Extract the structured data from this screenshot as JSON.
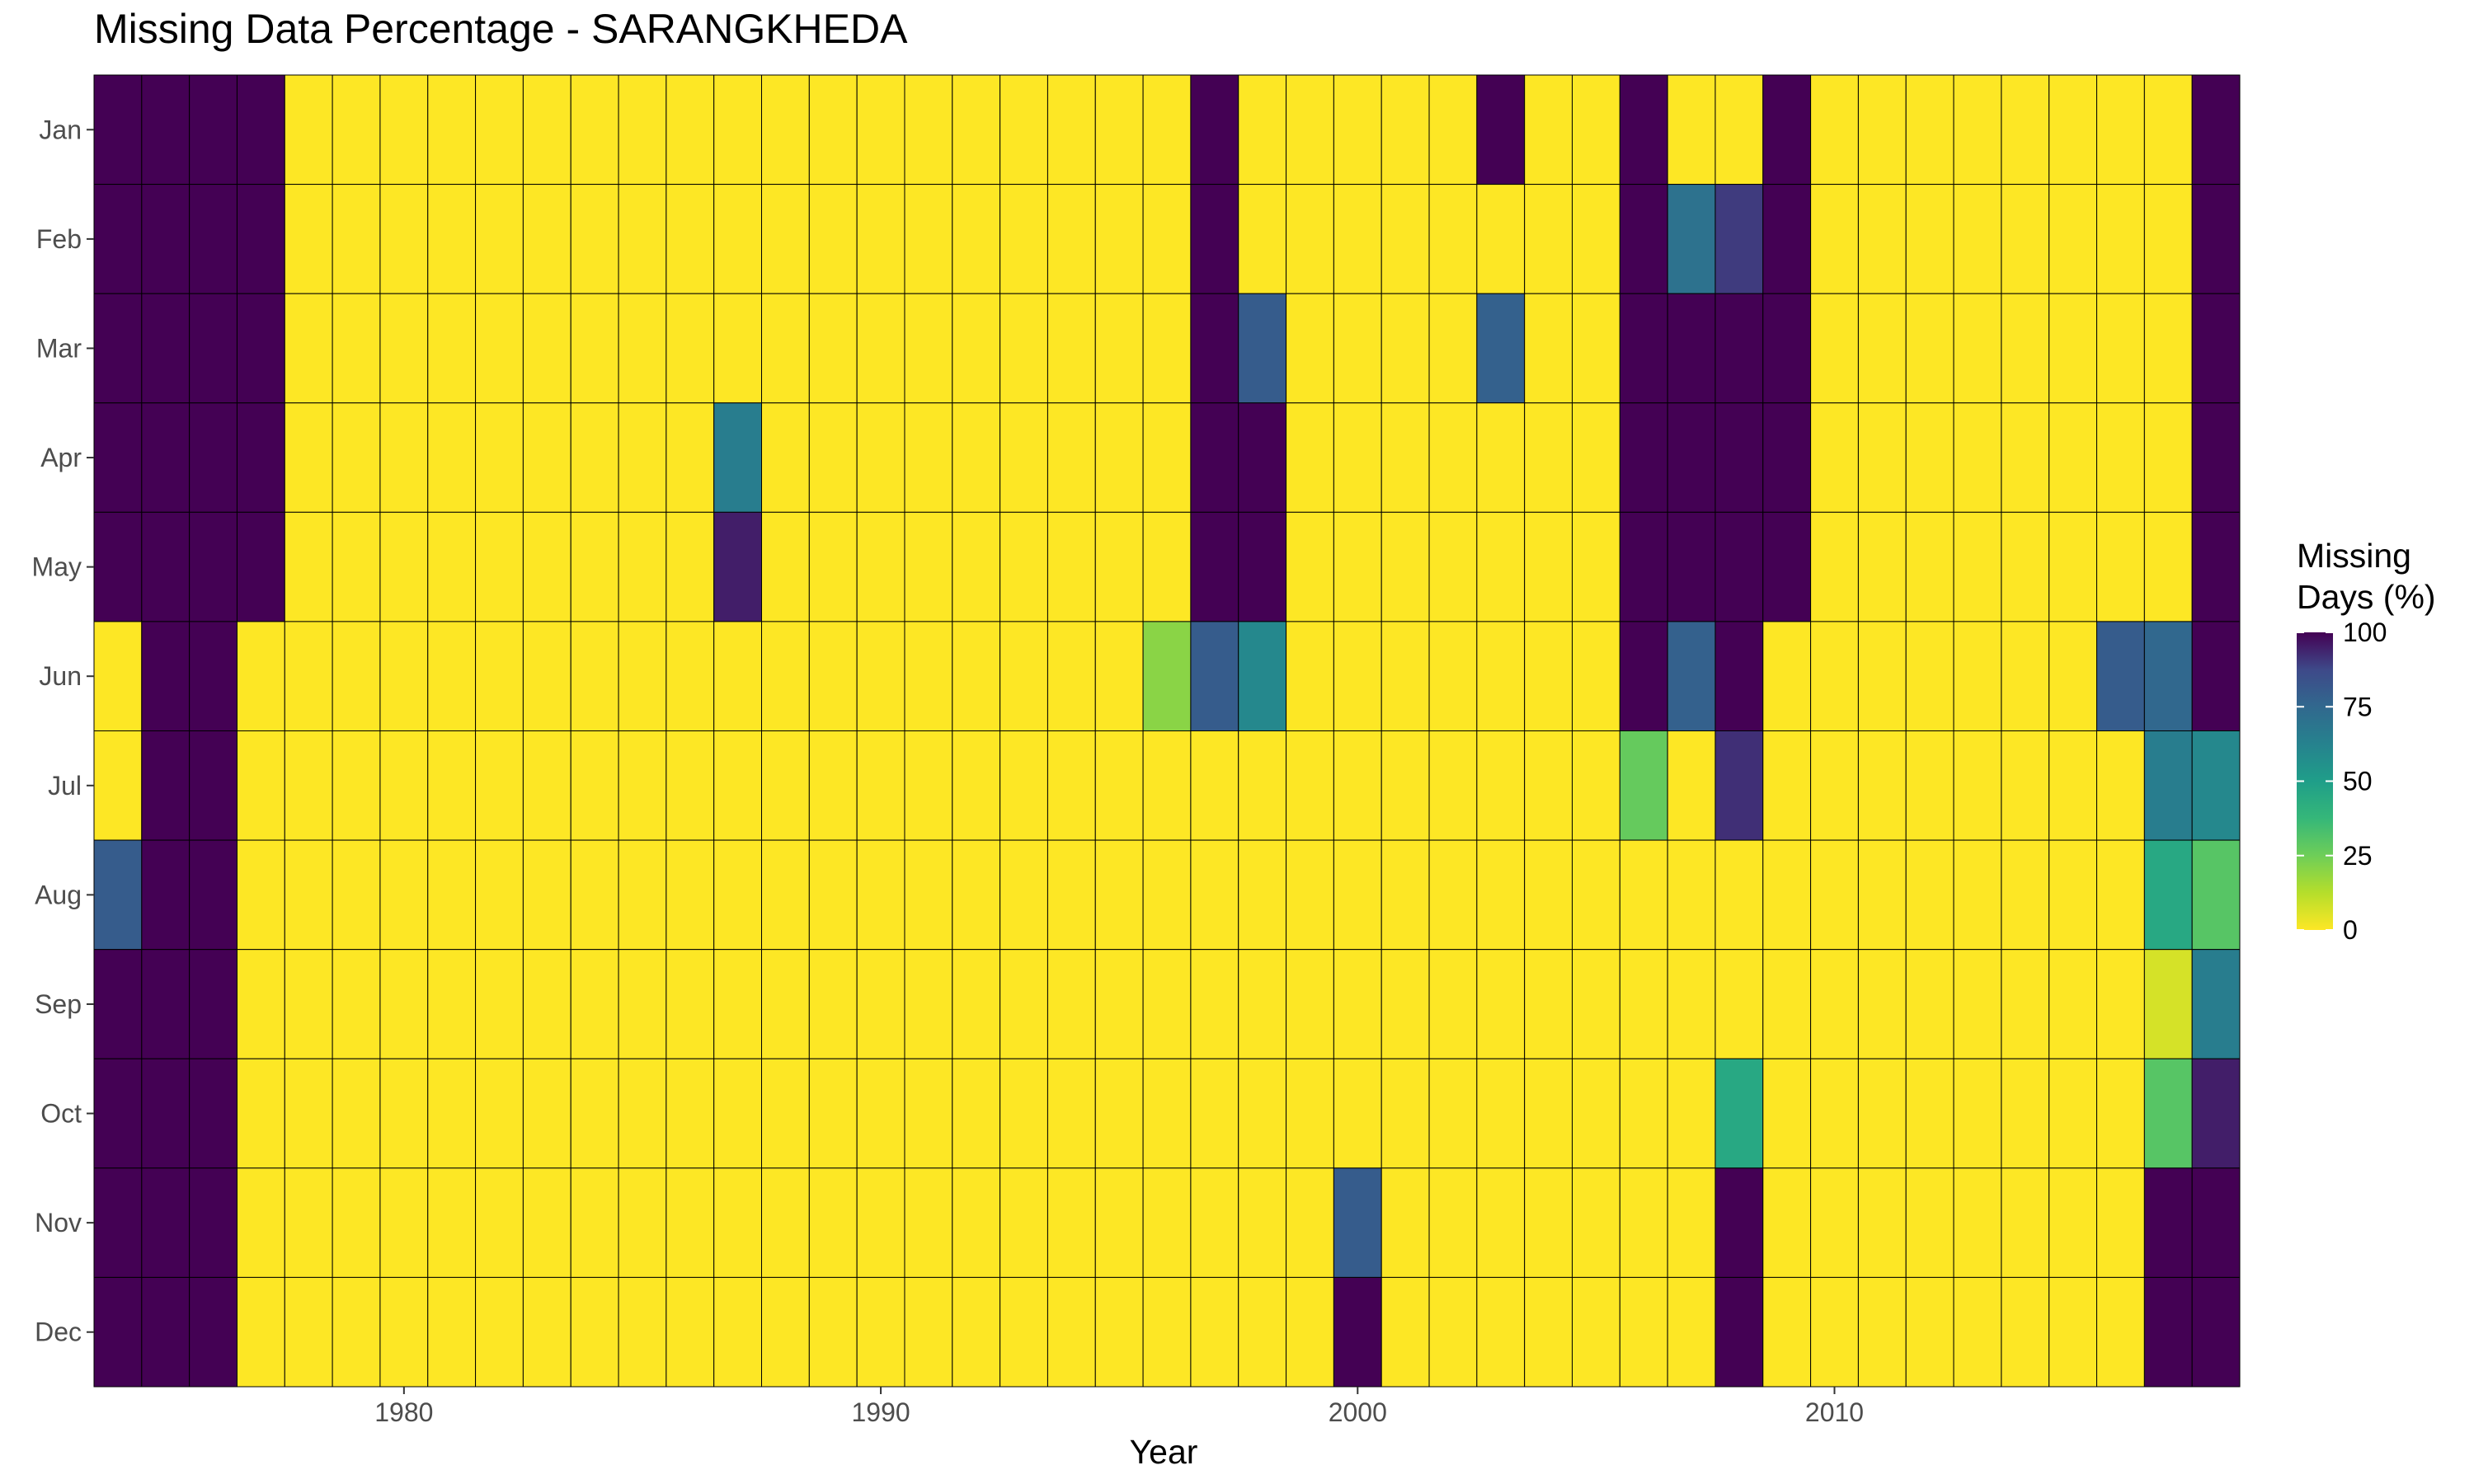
{
  "chart_data": {
    "type": "heatmap",
    "title": "Missing Data Percentage - SARANGKHEDA",
    "xlabel": "Year",
    "ylabel": "",
    "x_ticks": [
      1980,
      1990,
      2000,
      2010
    ],
    "years": [
      1974,
      1975,
      1976,
      1977,
      1978,
      1979,
      1980,
      1981,
      1982,
      1983,
      1984,
      1985,
      1986,
      1987,
      1988,
      1989,
      1990,
      1991,
      1992,
      1993,
      1994,
      1995,
      1996,
      1997,
      1998,
      1999,
      2000,
      2001,
      2002,
      2003,
      2004,
      2005,
      2006,
      2007,
      2008,
      2009,
      2010,
      2011,
      2012,
      2013,
      2014,
      2015,
      2016,
      2017,
      2018
    ],
    "months": [
      "Jan",
      "Feb",
      "Mar",
      "Apr",
      "May",
      "Jun",
      "Jul",
      "Aug",
      "Sep",
      "Oct",
      "Nov",
      "Dec"
    ],
    "legend": {
      "title_line1": "Missing",
      "title_line2": "Days (%)",
      "ticks": [
        0,
        25,
        50,
        75,
        100
      ],
      "range": [
        0,
        100
      ],
      "position": "right"
    },
    "color_scale": "viridis (reversed: 0 = yellow, 100 = dark purple)",
    "default_value": 0,
    "nonzero_cells": [
      {
        "year": 1974,
        "month": "Jan",
        "value": 100
      },
      {
        "year": 1974,
        "month": "Feb",
        "value": 100
      },
      {
        "year": 1974,
        "month": "Mar",
        "value": 100
      },
      {
        "year": 1974,
        "month": "Apr",
        "value": 100
      },
      {
        "year": 1974,
        "month": "May",
        "value": 100
      },
      {
        "year": 1974,
        "month": "Aug",
        "value": 80
      },
      {
        "year": 1974,
        "month": "Sep",
        "value": 100
      },
      {
        "year": 1974,
        "month": "Oct",
        "value": 100
      },
      {
        "year": 1974,
        "month": "Nov",
        "value": 100
      },
      {
        "year": 1974,
        "month": "Dec",
        "value": 100
      },
      {
        "year": 1975,
        "month": "Jan",
        "value": 100
      },
      {
        "year": 1975,
        "month": "Feb",
        "value": 100
      },
      {
        "year": 1975,
        "month": "Mar",
        "value": 100
      },
      {
        "year": 1975,
        "month": "Apr",
        "value": 100
      },
      {
        "year": 1975,
        "month": "May",
        "value": 100
      },
      {
        "year": 1975,
        "month": "Jun",
        "value": 100
      },
      {
        "year": 1975,
        "month": "Jul",
        "value": 100
      },
      {
        "year": 1975,
        "month": "Aug",
        "value": 100
      },
      {
        "year": 1975,
        "month": "Sep",
        "value": 100
      },
      {
        "year": 1975,
        "month": "Oct",
        "value": 100
      },
      {
        "year": 1975,
        "month": "Nov",
        "value": 100
      },
      {
        "year": 1975,
        "month": "Dec",
        "value": 100
      },
      {
        "year": 1976,
        "month": "Jan",
        "value": 100
      },
      {
        "year": 1976,
        "month": "Feb",
        "value": 100
      },
      {
        "year": 1976,
        "month": "Mar",
        "value": 100
      },
      {
        "year": 1976,
        "month": "Apr",
        "value": 100
      },
      {
        "year": 1976,
        "month": "May",
        "value": 100
      },
      {
        "year": 1976,
        "month": "Jun",
        "value": 100
      },
      {
        "year": 1976,
        "month": "Jul",
        "value": 100
      },
      {
        "year": 1976,
        "month": "Aug",
        "value": 100
      },
      {
        "year": 1976,
        "month": "Sep",
        "value": 100
      },
      {
        "year": 1976,
        "month": "Oct",
        "value": 100
      },
      {
        "year": 1976,
        "month": "Nov",
        "value": 100
      },
      {
        "year": 1976,
        "month": "Dec",
        "value": 100
      },
      {
        "year": 1977,
        "month": "Jan",
        "value": 100
      },
      {
        "year": 1977,
        "month": "Feb",
        "value": 100
      },
      {
        "year": 1977,
        "month": "Mar",
        "value": 100
      },
      {
        "year": 1977,
        "month": "Apr",
        "value": 100
      },
      {
        "year": 1977,
        "month": "May",
        "value": 100
      },
      {
        "year": 1987,
        "month": "Apr",
        "value": 65
      },
      {
        "year": 1987,
        "month": "May",
        "value": 95
      },
      {
        "year": 1996,
        "month": "Jun",
        "value": 20
      },
      {
        "year": 1997,
        "month": "Jan",
        "value": 100
      },
      {
        "year": 1997,
        "month": "Feb",
        "value": 100
      },
      {
        "year": 1997,
        "month": "Mar",
        "value": 100
      },
      {
        "year": 1997,
        "month": "Apr",
        "value": 100
      },
      {
        "year": 1997,
        "month": "May",
        "value": 100
      },
      {
        "year": 1997,
        "month": "Jun",
        "value": 80
      },
      {
        "year": 1998,
        "month": "Mar",
        "value": 80
      },
      {
        "year": 1998,
        "month": "Apr",
        "value": 100
      },
      {
        "year": 1998,
        "month": "May",
        "value": 100
      },
      {
        "year": 1998,
        "month": "Jun",
        "value": 60
      },
      {
        "year": 2000,
        "month": "Nov",
        "value": 80
      },
      {
        "year": 2000,
        "month": "Dec",
        "value": 100
      },
      {
        "year": 2003,
        "month": "Jan",
        "value": 100
      },
      {
        "year": 2003,
        "month": "Mar",
        "value": 78
      },
      {
        "year": 2006,
        "month": "Jan",
        "value": 100
      },
      {
        "year": 2006,
        "month": "Feb",
        "value": 100
      },
      {
        "year": 2006,
        "month": "Mar",
        "value": 100
      },
      {
        "year": 2006,
        "month": "Apr",
        "value": 100
      },
      {
        "year": 2006,
        "month": "May",
        "value": 100
      },
      {
        "year": 2006,
        "month": "Jun",
        "value": 100
      },
      {
        "year": 2006,
        "month": "Jul",
        "value": 27
      },
      {
        "year": 2007,
        "month": "Feb",
        "value": 70
      },
      {
        "year": 2007,
        "month": "Mar",
        "value": 100
      },
      {
        "year": 2007,
        "month": "Apr",
        "value": 100
      },
      {
        "year": 2007,
        "month": "May",
        "value": 100
      },
      {
        "year": 2007,
        "month": "Jun",
        "value": 78
      },
      {
        "year": 2008,
        "month": "Feb",
        "value": 90
      },
      {
        "year": 2008,
        "month": "Mar",
        "value": 100
      },
      {
        "year": 2008,
        "month": "Apr",
        "value": 100
      },
      {
        "year": 2008,
        "month": "May",
        "value": 100
      },
      {
        "year": 2008,
        "month": "Jun",
        "value": 100
      },
      {
        "year": 2008,
        "month": "Jul",
        "value": 92
      },
      {
        "year": 2008,
        "month": "Oct",
        "value": 45
      },
      {
        "year": 2008,
        "month": "Nov",
        "value": 100
      },
      {
        "year": 2008,
        "month": "Dec",
        "value": 100
      },
      {
        "year": 2009,
        "month": "Jan",
        "value": 100
      },
      {
        "year": 2009,
        "month": "Feb",
        "value": 100
      },
      {
        "year": 2009,
        "month": "Mar",
        "value": 100
      },
      {
        "year": 2009,
        "month": "Apr",
        "value": 100
      },
      {
        "year": 2009,
        "month": "May",
        "value": 100
      },
      {
        "year": 2016,
        "month": "Jun",
        "value": 80
      },
      {
        "year": 2017,
        "month": "Jun",
        "value": 75
      },
      {
        "year": 2017,
        "month": "Jul",
        "value": 65
      },
      {
        "year": 2017,
        "month": "Aug",
        "value": 45
      },
      {
        "year": 2017,
        "month": "Sep",
        "value": 7
      },
      {
        "year": 2017,
        "month": "Oct",
        "value": 30
      },
      {
        "year": 2017,
        "month": "Nov",
        "value": 100
      },
      {
        "year": 2017,
        "month": "Dec",
        "value": 100
      },
      {
        "year": 2018,
        "month": "Jan",
        "value": 100
      },
      {
        "year": 2018,
        "month": "Feb",
        "value": 100
      },
      {
        "year": 2018,
        "month": "Mar",
        "value": 100
      },
      {
        "year": 2018,
        "month": "Apr",
        "value": 100
      },
      {
        "year": 2018,
        "month": "May",
        "value": 100
      },
      {
        "year": 2018,
        "month": "Jun",
        "value": 100
      },
      {
        "year": 2018,
        "month": "Jul",
        "value": 60
      },
      {
        "year": 2018,
        "month": "Aug",
        "value": 30
      },
      {
        "year": 2018,
        "month": "Sep",
        "value": 65
      },
      {
        "year": 2018,
        "month": "Oct",
        "value": 95
      },
      {
        "year": 2018,
        "month": "Nov",
        "value": 100
      },
      {
        "year": 2018,
        "month": "Dec",
        "value": 100
      }
    ]
  }
}
